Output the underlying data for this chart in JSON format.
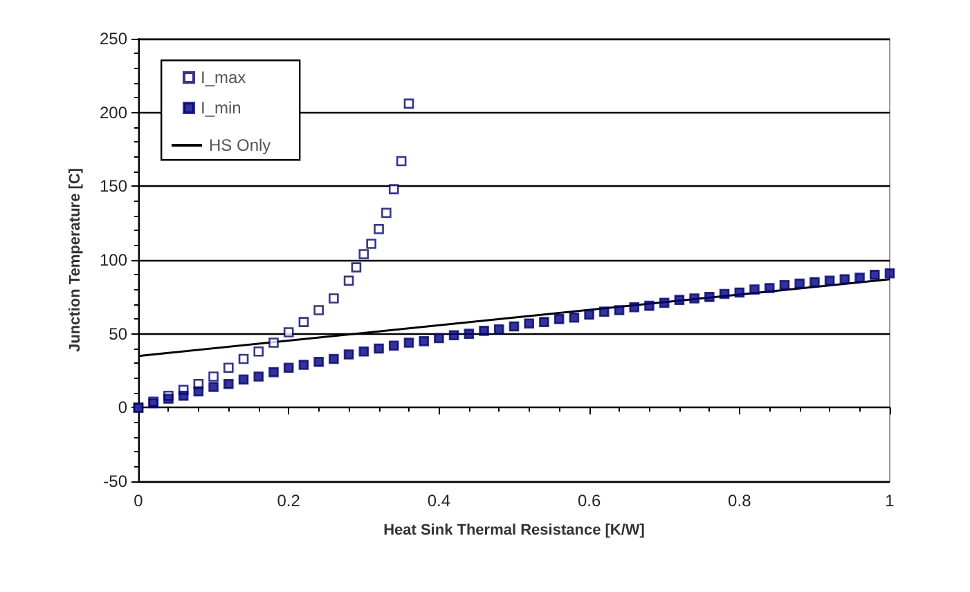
{
  "chart_data": {
    "type": "scatter",
    "xlabel": "Heat Sink Thermal Resistance [K/W]",
    "ylabel": "Junction Temperature [C]",
    "xlim": [
      0,
      1
    ],
    "xticks": [
      0,
      0.2,
      0.4,
      0.6,
      0.8,
      1
    ],
    "ylim": [
      -50,
      250
    ],
    "yticks": [
      -50,
      0,
      50,
      100,
      150,
      200,
      250
    ],
    "grid": "y",
    "legend": "top left",
    "series": [
      {
        "name": "I_max",
        "color": "#000080",
        "marker": "square",
        "x": [
          0,
          0.02,
          0.04,
          0.06,
          0.08,
          0.1,
          0.12,
          0.14,
          0.16,
          0.18,
          0.2,
          0.22,
          0.24,
          0.26,
          0.28,
          0.29,
          0.3,
          0.31,
          0.32,
          0.33,
          0.34,
          0.35,
          0.36
        ],
        "values": [
          0,
          4,
          8,
          12,
          16,
          21,
          27,
          33,
          38,
          44,
          51,
          58,
          66,
          74,
          86,
          95,
          104,
          111,
          121,
          132,
          148,
          167,
          206
        ]
      },
      {
        "name": "I_min",
        "color": "#000080",
        "marker": "square",
        "x": [
          0,
          0.02,
          0.04,
          0.06,
          0.08,
          0.1,
          0.12,
          0.14,
          0.16,
          0.18,
          0.2,
          0.22,
          0.24,
          0.26,
          0.28,
          0.3,
          0.32,
          0.34,
          0.36,
          0.38,
          0.4,
          0.42,
          0.44,
          0.46,
          0.48,
          0.5,
          0.52,
          0.54,
          0.56,
          0.58,
          0.6,
          0.62,
          0.64,
          0.66,
          0.68,
          0.7,
          0.72,
          0.74,
          0.76,
          0.78,
          0.8,
          0.82,
          0.84,
          0.86,
          0.88,
          0.9,
          0.92,
          0.94,
          0.96,
          0.98,
          1
        ],
        "values": [
          0,
          3,
          6,
          8,
          11,
          14,
          16,
          19,
          21,
          24,
          27,
          29,
          31,
          33,
          36,
          38,
          40,
          42,
          44,
          45,
          47,
          49,
          50,
          52,
          53,
          55,
          57,
          58,
          60,
          61,
          63,
          65,
          66,
          68,
          69,
          71,
          73,
          74,
          75,
          77,
          78,
          80,
          81,
          83,
          84,
          85,
          86,
          87,
          88,
          90,
          91
        ]
      },
      {
        "name": "HS Only",
        "type": "line",
        "color": "#000000",
        "marker": "none",
        "line_style": "solid",
        "x": [
          0,
          1
        ],
        "values": [
          35,
          87
        ]
      }
    ]
  }
}
